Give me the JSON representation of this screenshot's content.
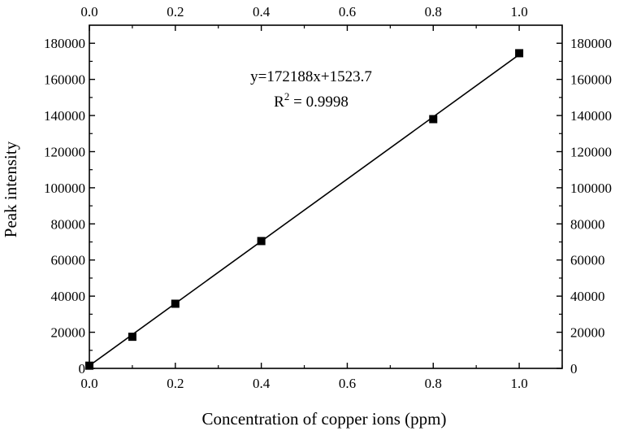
{
  "chart_data": {
    "type": "scatter",
    "title": "",
    "xlabel": "Concentration of copper ions (ppm)",
    "ylabel": "Peak intensity",
    "xlim": [
      0,
      1.1
    ],
    "ylim": [
      0,
      190000
    ],
    "xticks": [
      0.0,
      0.2,
      0.4,
      0.6,
      0.8,
      1.0
    ],
    "xtick_labels": [
      "0.0",
      "0.2",
      "0.4",
      "0.6",
      "0.8",
      "1.0"
    ],
    "yticks": [
      0,
      20000,
      40000,
      60000,
      80000,
      100000,
      120000,
      140000,
      160000,
      180000
    ],
    "ytick_labels": [
      "0",
      "20000",
      "40000",
      "60000",
      "80000",
      "100000",
      "120000",
      "140000",
      "160000",
      "180000"
    ],
    "grid": false,
    "mirror_axes": true,
    "marker_color": "#000000",
    "series": [
      {
        "marker": "square",
        "x": [
          0.0,
          0.1,
          0.2,
          0.4,
          0.8,
          1.0
        ],
        "y": [
          1500,
          17500,
          35800,
          70500,
          138000,
          174500
        ]
      }
    ],
    "fit_line": {
      "slope": 172188,
      "intercept": 1523.7,
      "x_range": [
        0,
        1.0
      ]
    },
    "annotations": {
      "equation": "y=172188x+1523.7",
      "r2_prefix": "R",
      "r2_sup": "2",
      "r2_value": " = 0.9998"
    }
  }
}
